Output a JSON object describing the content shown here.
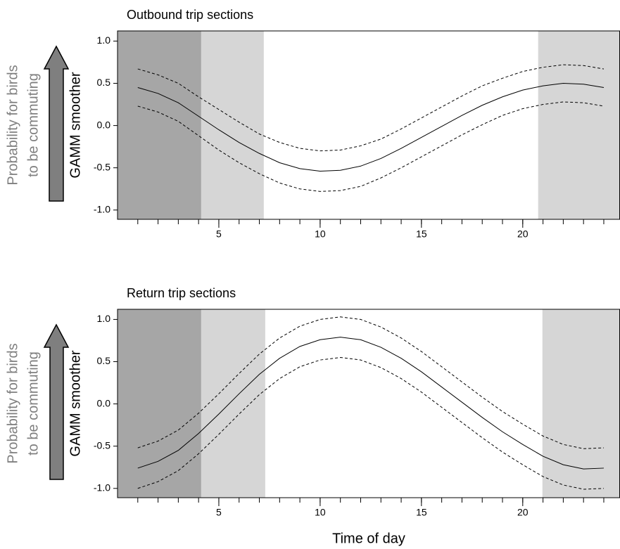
{
  "chart_data": [
    {
      "type": "line",
      "title": "Outbound trip sections",
      "ylabel": "GAMM smoother",
      "annotation": [
        "Probability for birds",
        "to be commuting"
      ],
      "x": [
        1,
        2,
        3,
        4,
        5,
        6,
        7,
        8,
        9,
        10,
        11,
        12,
        13,
        14,
        15,
        16,
        17,
        18,
        19,
        20,
        21,
        22,
        23,
        24
      ],
      "series": [
        {
          "color": "#000000",
          "dashed": false,
          "values": [
            0.45,
            0.38,
            0.27,
            0.11,
            -0.05,
            -0.2,
            -0.33,
            -0.44,
            -0.51,
            -0.54,
            -0.53,
            -0.48,
            -0.39,
            -0.27,
            -0.14,
            -0.01,
            0.12,
            0.24,
            0.34,
            0.42,
            0.47,
            0.5,
            0.49,
            0.45
          ]
        },
        {
          "color": "#000000",
          "dashed": true,
          "values": [
            0.67,
            0.6,
            0.5,
            0.34,
            0.19,
            0.04,
            -0.1,
            -0.2,
            -0.27,
            -0.3,
            -0.29,
            -0.24,
            -0.16,
            -0.04,
            0.09,
            0.22,
            0.35,
            0.47,
            0.56,
            0.64,
            0.69,
            0.72,
            0.71,
            0.67
          ]
        },
        {
          "color": "#000000",
          "dashed": true,
          "values": [
            0.23,
            0.16,
            0.05,
            -0.12,
            -0.29,
            -0.44,
            -0.57,
            -0.68,
            -0.75,
            -0.78,
            -0.77,
            -0.72,
            -0.62,
            -0.5,
            -0.37,
            -0.24,
            -0.11,
            0.01,
            0.12,
            0.2,
            0.25,
            0.28,
            0.27,
            0.23
          ]
        }
      ],
      "shaded_regions": [
        {
          "x0": 0,
          "x1": 4.13,
          "color": "#a6a6a6"
        },
        {
          "x0": 4.13,
          "x1": 7.22,
          "color": "#d6d6d6"
        },
        {
          "x0": 20.76,
          "x1": 24.8,
          "color": "#d6d6d6"
        }
      ],
      "xlim": [
        0,
        24.8
      ],
      "ylim": [
        -1.11,
        1.12
      ],
      "xticks": [
        5,
        10,
        15,
        20
      ],
      "xminor_ticks": [
        1,
        2,
        3,
        4,
        5,
        6,
        7,
        8,
        9,
        10,
        11,
        12,
        13,
        14,
        15,
        16,
        17,
        18,
        19,
        20,
        21,
        22,
        23,
        24
      ],
      "yticks": [
        {
          "value": 1,
          "label": "1.0"
        },
        {
          "value": 0.5,
          "label": "0.5"
        },
        {
          "value": 0,
          "label": "0.0"
        },
        {
          "value": -0.5,
          "label": "-0.5"
        },
        {
          "value": -1,
          "label": "-1.0"
        }
      ]
    },
    {
      "type": "line",
      "title": "Return trip sections",
      "ylabel": "GAMM smoother",
      "xlabel": "Time of day",
      "annotation": [
        "Probability for birds",
        "to be commuting"
      ],
      "x": [
        1,
        2,
        3,
        4,
        5,
        6,
        7,
        8,
        9,
        10,
        11,
        12,
        13,
        14,
        15,
        16,
        17,
        18,
        19,
        20,
        21,
        22,
        23,
        24
      ],
      "series": [
        {
          "color": "#000000",
          "dashed": false,
          "values": [
            -0.76,
            -0.68,
            -0.55,
            -0.35,
            -0.12,
            0.12,
            0.35,
            0.54,
            0.68,
            0.76,
            0.79,
            0.76,
            0.67,
            0.54,
            0.38,
            0.2,
            0.02,
            -0.16,
            -0.33,
            -0.48,
            -0.62,
            -0.72,
            -0.77,
            -0.76
          ]
        },
        {
          "color": "#000000",
          "dashed": true,
          "values": [
            -0.52,
            -0.44,
            -0.31,
            -0.11,
            0.12,
            0.36,
            0.59,
            0.78,
            0.92,
            1.0,
            1.03,
            1.0,
            0.91,
            0.78,
            0.62,
            0.44,
            0.26,
            0.08,
            -0.09,
            -0.24,
            -0.38,
            -0.48,
            -0.53,
            -0.52
          ]
        },
        {
          "color": "#000000",
          "dashed": true,
          "values": [
            -1.0,
            -0.92,
            -0.79,
            -0.59,
            -0.36,
            -0.12,
            0.11,
            0.3,
            0.44,
            0.52,
            0.55,
            0.52,
            0.43,
            0.3,
            0.14,
            -0.04,
            -0.22,
            -0.4,
            -0.57,
            -0.72,
            -0.86,
            -0.96,
            -1.01,
            -1.0
          ]
        }
      ],
      "shaded_regions": [
        {
          "x0": 0,
          "x1": 4.13,
          "color": "#a6a6a6"
        },
        {
          "x0": 4.13,
          "x1": 7.29,
          "color": "#d6d6d6"
        },
        {
          "x0": 20.97,
          "x1": 24.8,
          "color": "#d6d6d6"
        }
      ],
      "xlim": [
        0,
        24.8
      ],
      "ylim": [
        -1.11,
        1.12
      ],
      "xticks": [
        5,
        10,
        15,
        20
      ],
      "xminor_ticks": [
        1,
        2,
        3,
        4,
        5,
        6,
        7,
        8,
        9,
        10,
        11,
        12,
        13,
        14,
        15,
        16,
        17,
        18,
        19,
        20,
        21,
        22,
        23,
        24
      ],
      "yticks": [
        {
          "value": 1,
          "label": "1.0"
        },
        {
          "value": 0.5,
          "label": "0.5"
        },
        {
          "value": 0,
          "label": "0.0"
        },
        {
          "value": -0.5,
          "label": "-0.5"
        },
        {
          "value": -1,
          "label": "-1.0"
        }
      ]
    }
  ]
}
